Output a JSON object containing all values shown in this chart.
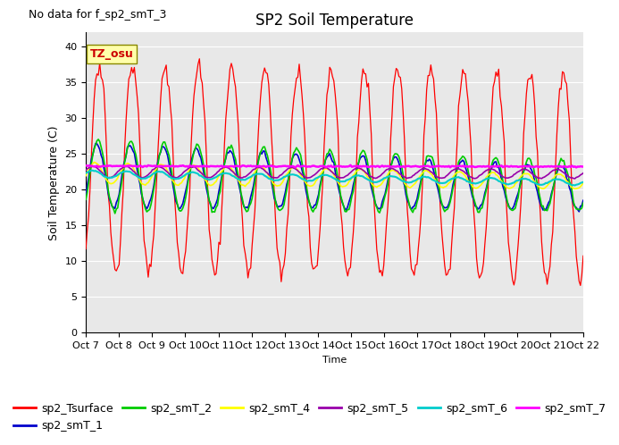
{
  "title": "SP2 Soil Temperature",
  "ylabel": "Soil Temperature (C)",
  "xlabel": "Time",
  "note": "No data for f_sp2_smT_3",
  "tz_label": "TZ_osu",
  "ylim": [
    0,
    42
  ],
  "yticks": [
    0,
    5,
    10,
    15,
    20,
    25,
    30,
    35,
    40
  ],
  "xtick_labels": [
    "Oct 7",
    "Oct 8",
    "Oct 9",
    "Oct 10",
    "Oct 11",
    "Oct 12",
    "Oct 13",
    "Oct 14",
    "Oct 15",
    "Oct 16",
    "Oct 17",
    "Oct 18",
    "Oct 19",
    "Oct 20",
    "Oct 21",
    "Oct 22"
  ],
  "series_colors": {
    "sp2_Tsurface": "#ff0000",
    "sp2_smT_1": "#0000cc",
    "sp2_smT_2": "#00cc00",
    "sp2_smT_4": "#ffff00",
    "sp2_smT_5": "#9900aa",
    "sp2_smT_6": "#00cccc",
    "sp2_smT_7": "#ff00ff"
  },
  "bg_color": "#e8e8e8",
  "title_fontsize": 12,
  "note_fontsize": 9,
  "legend_fontsize": 9,
  "tick_fontsize": 8,
  "ylabel_fontsize": 9
}
